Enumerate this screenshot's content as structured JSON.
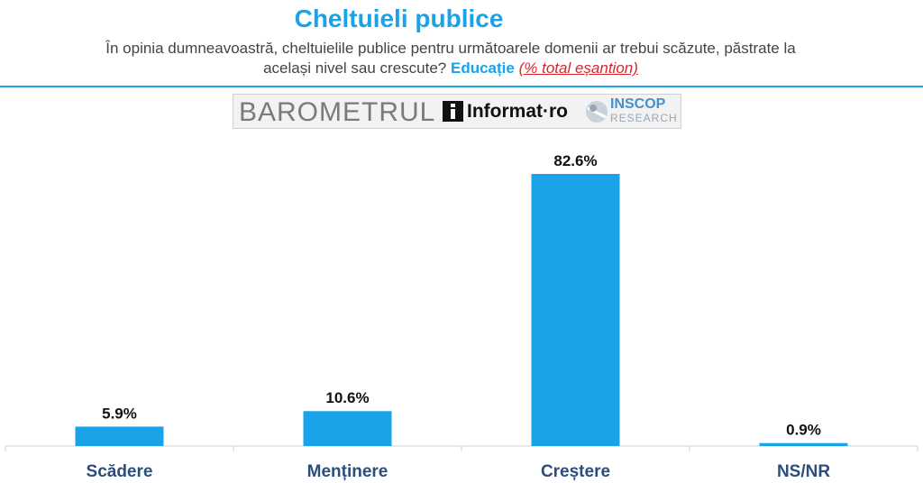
{
  "header": {
    "title": "Cheltuieli publice",
    "subtitle_line1": "În opinia dumneavoastră, cheltuielile publice pentru următoarele domenii ar trebui scăzute, păstrate la",
    "subtitle_line2_prefix": "același nivel sau crescute?",
    "subtitle_highlight": "Educație",
    "subtitle_note": "(% total eșantion)"
  },
  "logos": {
    "barometer": "BAROMETRUL",
    "informat": "Informat·ro",
    "inscop": "INSCOP",
    "research": "RESEARCH"
  },
  "colors": {
    "bar": "#1aa3e8",
    "title": "#1aa3e8",
    "category": "#2a4f7e",
    "note": "#d9262b"
  },
  "chart_data": {
    "type": "bar",
    "categories": [
      "Scădere",
      "Menținere",
      "Creștere",
      "NS/NR"
    ],
    "values": [
      5.9,
      10.6,
      82.6,
      0.9
    ],
    "value_labels": [
      "5.9%",
      "10.6%",
      "82.6%",
      "0.9%"
    ],
    "ylim": [
      0,
      82.6
    ],
    "grid": false,
    "legend": "none"
  }
}
